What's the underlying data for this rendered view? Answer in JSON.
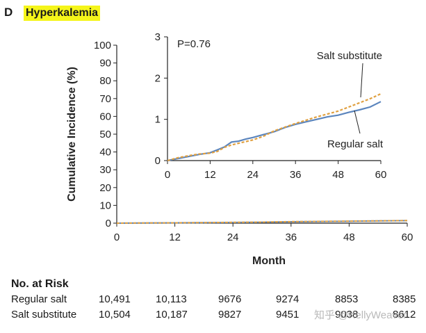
{
  "panel": {
    "letter": "D",
    "title": "Hyperkalemia"
  },
  "colors": {
    "regular_salt": "#5b85bd",
    "salt_substitute": "#e0a040",
    "title_highlight": "#f5f51a"
  },
  "chart_data": [
    {
      "type": "line",
      "title": "Hyperkalemia",
      "xlabel": "Month",
      "ylabel": "Cumulative Incidence (%)",
      "xlim": [
        0,
        60
      ],
      "ylim": [
        0,
        100
      ],
      "xticks": [
        0,
        12,
        24,
        36,
        48,
        60
      ],
      "yticks": [
        0,
        10,
        20,
        30,
        40,
        50,
        60,
        70,
        80,
        90,
        100
      ],
      "grid": false,
      "series": [
        {
          "name": "Regular salt",
          "style": "solid",
          "x": [
            0,
            6,
            12,
            18,
            24,
            30,
            36,
            42,
            48,
            54,
            60
          ],
          "y": [
            0,
            0.1,
            0.2,
            0.3,
            0.4,
            0.55,
            0.8,
            0.95,
            1.1,
            1.25,
            1.4
          ]
        },
        {
          "name": "Salt substitute",
          "style": "dashed",
          "x": [
            0,
            6,
            12,
            18,
            24,
            30,
            36,
            42,
            48,
            54,
            60
          ],
          "y": [
            0,
            0.1,
            0.2,
            0.3,
            0.45,
            0.6,
            0.85,
            1.0,
            1.15,
            1.3,
            1.5
          ]
        }
      ]
    },
    {
      "type": "line",
      "role": "inset",
      "annotation": "P=0.76",
      "xlim": [
        0,
        60
      ],
      "ylim": [
        0,
        3
      ],
      "xticks": [
        0,
        12,
        24,
        36,
        48,
        60
      ],
      "yticks": [
        0,
        1,
        2,
        3
      ],
      "series_labels": {
        "salt_substitute": "Salt substitute",
        "regular_salt": "Regular salt"
      },
      "series": [
        {
          "name": "Regular salt",
          "style": "solid",
          "x": [
            0,
            3,
            6,
            9,
            12,
            14,
            16,
            18,
            20,
            22,
            24,
            27,
            30,
            33,
            36,
            39,
            42,
            45,
            48,
            51,
            54,
            57,
            60
          ],
          "y": [
            0,
            0.05,
            0.1,
            0.15,
            0.19,
            0.26,
            0.33,
            0.45,
            0.47,
            0.52,
            0.56,
            0.63,
            0.7,
            0.8,
            0.88,
            0.94,
            1.0,
            1.06,
            1.1,
            1.17,
            1.23,
            1.3,
            1.43
          ]
        },
        {
          "name": "Salt substitute",
          "style": "dashed",
          "x": [
            0,
            3,
            6,
            9,
            12,
            14,
            16,
            18,
            20,
            22,
            24,
            27,
            30,
            33,
            36,
            39,
            42,
            45,
            48,
            51,
            54,
            57,
            60
          ],
          "y": [
            0,
            0.07,
            0.12,
            0.16,
            0.18,
            0.22,
            0.32,
            0.38,
            0.42,
            0.46,
            0.5,
            0.59,
            0.72,
            0.81,
            0.9,
            0.98,
            1.06,
            1.13,
            1.2,
            1.3,
            1.4,
            1.5,
            1.62
          ]
        }
      ]
    }
  ],
  "risk_table": {
    "title": "No. at Risk",
    "rows": [
      {
        "label": "Regular salt",
        "values": [
          "10,491",
          "10,113",
          "9676",
          "9274",
          "8853",
          "8385"
        ]
      },
      {
        "label": "Salt substitute",
        "values": [
          "10,504",
          "10,187",
          "9827",
          "9451",
          "9038",
          "8612"
        ]
      }
    ]
  },
  "watermark": "知乎 @KellyWeaver"
}
